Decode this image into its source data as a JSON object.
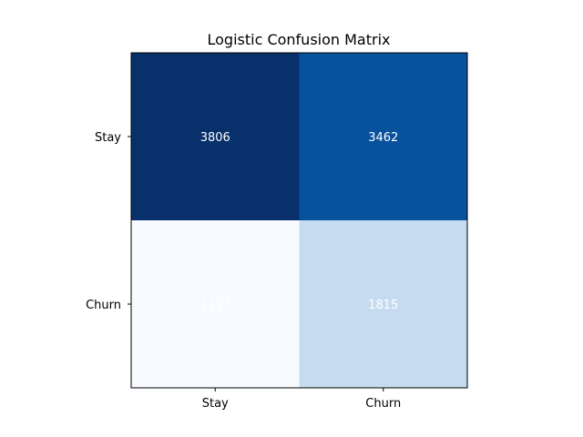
{
  "chart_data": {
    "type": "heatmap",
    "title": "Logistic Confusion Matrix",
    "xlabel": "",
    "ylabel": "",
    "x_categories": [
      "Stay",
      "Churn"
    ],
    "y_categories": [
      "Stay",
      "Churn"
    ],
    "values": [
      [
        3806,
        3462
      ],
      [
        1117,
        1815
      ]
    ],
    "colormap": "Blues",
    "cell_colors": [
      [
        "#08306b",
        "#08519c"
      ],
      [
        "#f7fbff",
        "#c6dbef"
      ]
    ],
    "value_label_color": "#ffffff",
    "grid": false,
    "legend": "none"
  }
}
